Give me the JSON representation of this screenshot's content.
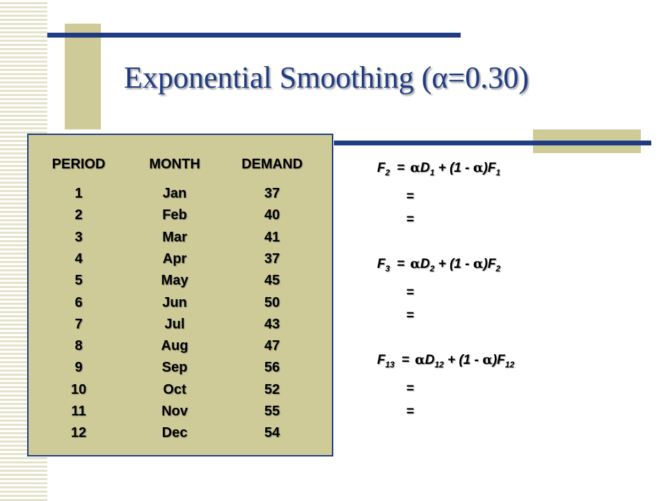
{
  "title": "Exponential Smoothing (α=0.30)",
  "table": {
    "headers": [
      "PERIOD",
      "MONTH",
      "DEMAND"
    ],
    "rows": [
      [
        "1",
        "Jan",
        "37"
      ],
      [
        "2",
        "Feb",
        "40"
      ],
      [
        "3",
        "Mar",
        "41"
      ],
      [
        "4",
        "Apr",
        "37"
      ],
      [
        "5",
        "May",
        "45"
      ],
      [
        "6",
        "Jun",
        "50"
      ],
      [
        "7",
        "Jul",
        "43"
      ],
      [
        "8",
        "Aug",
        "47"
      ],
      [
        "9",
        "Sep",
        "56"
      ],
      [
        "10",
        "Oct",
        "52"
      ],
      [
        "11",
        "Nov",
        "55"
      ],
      [
        "12",
        "Dec",
        "54"
      ]
    ]
  },
  "formulas": [
    {
      "lhs": "F",
      "lhs_sub": "2",
      "eq": "=",
      "alpha": "α",
      "d": "D",
      "d_sub": "1",
      "mid": " + (1 - ",
      "alpha2": "α",
      "close": ")F",
      "f_sub": "1",
      "blanks": [
        "=",
        "="
      ]
    },
    {
      "lhs": "F",
      "lhs_sub": "3",
      "eq": "=",
      "alpha": "α",
      "d": "D",
      "d_sub": "2",
      "mid": " + (1 - ",
      "alpha2": "α",
      "close": ")F",
      "f_sub": "2",
      "blanks": [
        "=",
        "="
      ]
    },
    {
      "lhs": "F",
      "lhs_sub": "13",
      "eq": "=",
      "alpha": "α",
      "d": "D",
      "d_sub": "12",
      "mid": " + (1 - ",
      "alpha2": "α",
      "close": ")F",
      "f_sub": "12",
      "blanks": [
        "=",
        "="
      ]
    }
  ]
}
